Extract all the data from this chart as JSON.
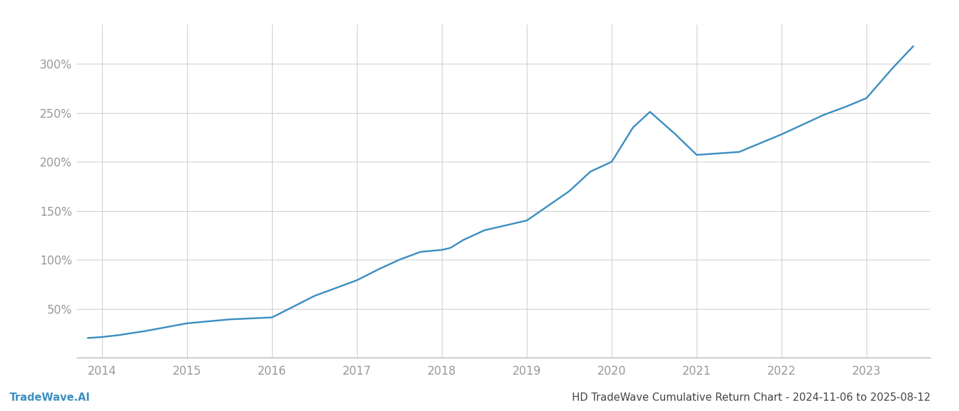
{
  "title": "HD TradeWave Cumulative Return Chart - 2024-11-06 to 2025-08-12",
  "watermark": "TradeWave.AI",
  "line_color": "#3d8fc0",
  "background_color": "#ffffff",
  "grid_color": "#cccccc",
  "x_years": [
    2014,
    2015,
    2016,
    2017,
    2018,
    2019,
    2020,
    2021,
    2022,
    2023
  ],
  "data_x": [
    2013.83,
    2014.0,
    2014.2,
    2014.5,
    2014.75,
    2015.0,
    2015.25,
    2015.5,
    2015.75,
    2016.0,
    2016.25,
    2016.5,
    2016.75,
    2017.0,
    2017.25,
    2017.5,
    2017.75,
    2018.0,
    2018.1,
    2018.25,
    2018.5,
    2018.75,
    2019.0,
    2019.25,
    2019.5,
    2019.75,
    2020.0,
    2020.25,
    2020.45,
    2020.75,
    2021.0,
    2021.5,
    2022.0,
    2022.25,
    2022.5,
    2022.75,
    2023.0,
    2023.3,
    2023.55
  ],
  "data_y": [
    20,
    21,
    23,
    27,
    31,
    35,
    37,
    39,
    40,
    41,
    52,
    63,
    71,
    79,
    90,
    100,
    108,
    110,
    112,
    120,
    130,
    135,
    140,
    155,
    170,
    190,
    200,
    235,
    251,
    228,
    207,
    210,
    228,
    238,
    248,
    256,
    265,
    295,
    318
  ],
  "ylim": [
    0,
    340
  ],
  "yticks": [
    50,
    100,
    150,
    200,
    250,
    300
  ],
  "xlim": [
    2013.7,
    2023.75
  ],
  "title_fontsize": 11,
  "watermark_fontsize": 11,
  "tick_label_color": "#999999",
  "title_color": "#444444",
  "watermark_color": "#3d8fc0",
  "line_width": 1.8
}
